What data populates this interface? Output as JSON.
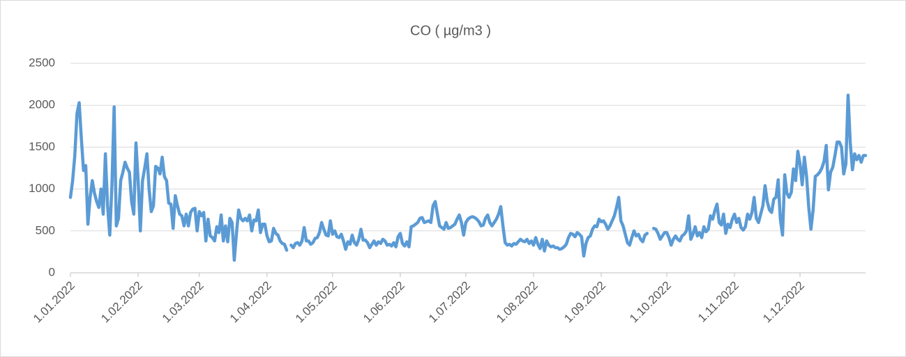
{
  "chart_data": {
    "type": "line",
    "title": "CO ( µg/m3 )",
    "categories": [
      "1.01.2022",
      null,
      null,
      null,
      null,
      null,
      null,
      null,
      null,
      null,
      null,
      null,
      null,
      null,
      null,
      null,
      null,
      null,
      null,
      null,
      null,
      null,
      null,
      null,
      null,
      null,
      null,
      null,
      null,
      null,
      null,
      "1.02.2022",
      null,
      null,
      null,
      null,
      null,
      null,
      null,
      null,
      null,
      null,
      null,
      null,
      null,
      null,
      null,
      null,
      null,
      null,
      null,
      null,
      null,
      null,
      null,
      null,
      null,
      null,
      null,
      "1.03.2022",
      null,
      null,
      null,
      null,
      null,
      null,
      null,
      null,
      null,
      null,
      null,
      null,
      null,
      null,
      null,
      null,
      null,
      null,
      null,
      null,
      null,
      null,
      null,
      null,
      null,
      null,
      null,
      null,
      null,
      null,
      "1.04.2022",
      null,
      null,
      null,
      null,
      null,
      null,
      null,
      null,
      null,
      null,
      null,
      null,
      null,
      null,
      null,
      null,
      null,
      null,
      null,
      null,
      null,
      null,
      null,
      null,
      null,
      null,
      null,
      null,
      null,
      "1.05.2022",
      null,
      null,
      null,
      null,
      null,
      null,
      null,
      null,
      null,
      null,
      null,
      null,
      null,
      null,
      null,
      null,
      null,
      null,
      null,
      null,
      null,
      null,
      null,
      null,
      null,
      null,
      null,
      null,
      null,
      null,
      "1.06.2022",
      null,
      null,
      null,
      null,
      null,
      null,
      null,
      null,
      null,
      null,
      null,
      null,
      null,
      null,
      null,
      null,
      null,
      null,
      null,
      null,
      null,
      null,
      null,
      null,
      null,
      null,
      null,
      null,
      null,
      "1.07.2022",
      null,
      null,
      null,
      null,
      null,
      null,
      null,
      null,
      null,
      null,
      null,
      null,
      null,
      null,
      null,
      null,
      null,
      null,
      null,
      null,
      null,
      null,
      null,
      null,
      null,
      null,
      null,
      null,
      null,
      null,
      "1.08.2022",
      null,
      null,
      null,
      null,
      null,
      null,
      null,
      null,
      null,
      null,
      null,
      null,
      null,
      null,
      null,
      null,
      null,
      null,
      null,
      null,
      null,
      null,
      null,
      null,
      null,
      null,
      null,
      null,
      null,
      null,
      "1.09.2022",
      null,
      null,
      null,
      null,
      null,
      null,
      null,
      null,
      null,
      null,
      null,
      null,
      null,
      null,
      null,
      null,
      null,
      null,
      null,
      null,
      null,
      null,
      null,
      null,
      null,
      null,
      null,
      null,
      null,
      "1.10.2022",
      null,
      null,
      null,
      null,
      null,
      null,
      null,
      null,
      null,
      null,
      null,
      null,
      null,
      null,
      null,
      null,
      null,
      null,
      null,
      null,
      null,
      null,
      null,
      null,
      null,
      null,
      null,
      null,
      null,
      null,
      "1.11.2022",
      null,
      null,
      null,
      null,
      null,
      null,
      null,
      null,
      null,
      null,
      null,
      null,
      null,
      null,
      null,
      null,
      null,
      null,
      null,
      null,
      null,
      null,
      null,
      null,
      null,
      null,
      null,
      null,
      null,
      "1.12.2022",
      null,
      null,
      null,
      null,
      null,
      null,
      null,
      null,
      null,
      null,
      null,
      null,
      null,
      null,
      null,
      null,
      null,
      null,
      null,
      null,
      null,
      null,
      null,
      null,
      null,
      null,
      null,
      null,
      null,
      null
    ],
    "values": [
      900,
      1100,
      1400,
      1900,
      2030,
      1600,
      1220,
      1280,
      580,
      900,
      1100,
      950,
      850,
      780,
      1000,
      700,
      1420,
      800,
      450,
      1050,
      1980,
      560,
      650,
      1100,
      1200,
      1320,
      1250,
      1200,
      850,
      700,
      1550,
      1100,
      500,
      1100,
      1250,
      1420,
      1000,
      730,
      800,
      1270,
      1250,
      1180,
      1380,
      1150,
      1100,
      830,
      820,
      530,
      920,
      800,
      700,
      680,
      560,
      700,
      560,
      720,
      760,
      770,
      500,
      730,
      680,
      720,
      380,
      640,
      440,
      420,
      380,
      550,
      480,
      690,
      380,
      560,
      370,
      650,
      600,
      150,
      470,
      750,
      650,
      620,
      650,
      620,
      690,
      500,
      630,
      620,
      750,
      480,
      580,
      580,
      440,
      370,
      380,
      530,
      470,
      450,
      380,
      350,
      340,
      270,
      null,
      330,
      300,
      350,
      360,
      330,
      380,
      540,
      380,
      380,
      340,
      360,
      410,
      420,
      480,
      600,
      520,
      450,
      440,
      620,
      460,
      500,
      430,
      420,
      460,
      380,
      280,
      370,
      340,
      450,
      360,
      330,
      400,
      520,
      390,
      390,
      360,
      300,
      340,
      380,
      330,
      370,
      350,
      400,
      380,
      330,
      340,
      320,
      360,
      310,
      430,
      470,
      350,
      320,
      370,
      310,
      550,
      560,
      580,
      600,
      650,
      660,
      600,
      610,
      620,
      600,
      800,
      850,
      700,
      560,
      540,
      520,
      600,
      530,
      540,
      560,
      580,
      640,
      690,
      600,
      450,
      600,
      640,
      660,
      670,
      660,
      640,
      610,
      560,
      570,
      650,
      690,
      600,
      560,
      600,
      640,
      700,
      790,
      560,
      360,
      330,
      340,
      320,
      350,
      340,
      370,
      400,
      380,
      370,
      400,
      350,
      380,
      330,
      420,
      340,
      290,
      400,
      260,
      380,
      330,
      310,
      320,
      300,
      300,
      280,
      290,
      310,
      340,
      420,
      470,
      460,
      430,
      480,
      460,
      430,
      200,
      350,
      420,
      440,
      520,
      560,
      550,
      640,
      610,
      620,
      580,
      520,
      560,
      620,
      680,
      780,
      900,
      620,
      560,
      460,
      360,
      330,
      420,
      500,
      440,
      460,
      400,
      370,
      450,
      470,
      null,
      null,
      530,
      520,
      470,
      400,
      440,
      480,
      480,
      420,
      330,
      400,
      440,
      400,
      380,
      440,
      460,
      500,
      680,
      400,
      460,
      550,
      440,
      480,
      420,
      550,
      490,
      520,
      680,
      640,
      740,
      820,
      600,
      570,
      700,
      470,
      580,
      540,
      640,
      700,
      600,
      650,
      540,
      510,
      550,
      700,
      640,
      720,
      900,
      650,
      600,
      700,
      800,
      1040,
      850,
      750,
      720,
      880,
      900,
      1110,
      640,
      450,
      1170,
      950,
      900,
      960,
      1240,
      1100,
      1450,
      1300,
      1050,
      1380,
      1150,
      780,
      520,
      750,
      1150,
      1170,
      1200,
      1250,
      1330,
      1520,
      990,
      1200,
      1260,
      1400,
      1560,
      1560,
      1500,
      1180,
      1300,
      2120,
      1550,
      1230,
      1420,
      1350,
      1400,
      1320,
      1400,
      1400
    ],
    "color": "#5b9bd5",
    "ylim": [
      0,
      2500
    ],
    "yticks": [
      0,
      500,
      1000,
      1500,
      2000,
      2500
    ],
    "grid": true
  }
}
